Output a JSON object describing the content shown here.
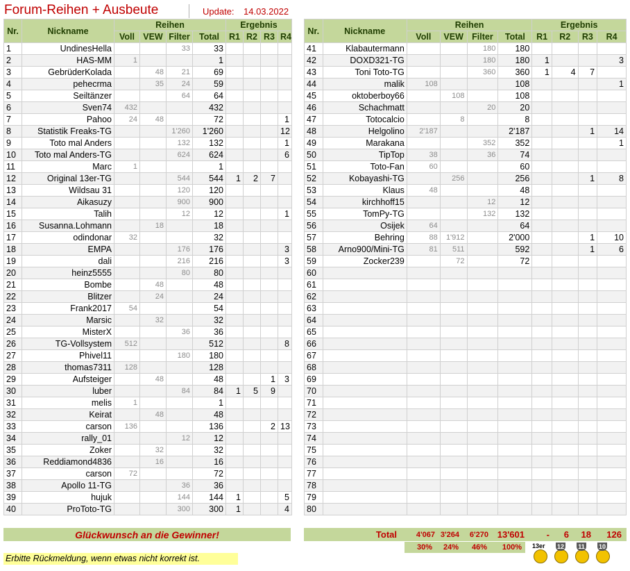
{
  "header": {
    "title": "Forum-Reihen + Ausbeute",
    "update_label": "Update:",
    "update_value": "14.03.2022"
  },
  "columns": {
    "nr": "Nr.",
    "nick": "Nickname",
    "group_reihen": "Reihen",
    "group_ergebnis": "Ergebnis",
    "voll": "Voll",
    "vew": "VEW",
    "filter": "Filter",
    "total": "Total",
    "r1": "R1",
    "r2": "R2",
    "r3": "R3",
    "r4": "R4"
  },
  "left_rows": [
    [
      "1",
      "UndinesHella",
      "",
      "",
      "33",
      "33",
      "",
      "",
      "",
      ""
    ],
    [
      "2",
      "HAS-MM",
      "1",
      "",
      "",
      "1",
      "",
      "",
      "",
      ""
    ],
    [
      "3",
      "GebrüderKolada",
      "",
      "48",
      "21",
      "69",
      "",
      "",
      "",
      ""
    ],
    [
      "4",
      "pehecrma",
      "",
      "35",
      "24",
      "59",
      "",
      "",
      "",
      ""
    ],
    [
      "5",
      "Seiltänzer",
      "",
      "",
      "64",
      "64",
      "",
      "",
      "",
      ""
    ],
    [
      "6",
      "Sven74",
      "432",
      "",
      "",
      "432",
      "",
      "",
      "",
      ""
    ],
    [
      "7",
      "Pahoo",
      "24",
      "48",
      "",
      "72",
      "",
      "",
      "",
      "1"
    ],
    [
      "8",
      "Statistik Freaks-TG",
      "",
      "",
      "1'260",
      "1'260",
      "",
      "",
      "",
      "12"
    ],
    [
      "9",
      "Toto mal Anders",
      "",
      "",
      "132",
      "132",
      "",
      "",
      "",
      "1"
    ],
    [
      "10",
      "Toto mal Anders-TG",
      "",
      "",
      "624",
      "624",
      "",
      "",
      "",
      "6"
    ],
    [
      "11",
      "Marc",
      "1",
      "",
      "",
      "1",
      "",
      "",
      "",
      ""
    ],
    [
      "12",
      "Original 13er-TG",
      "",
      "",
      "544",
      "544",
      "1",
      "2",
      "7",
      ""
    ],
    [
      "13",
      "Wildsau 31",
      "",
      "",
      "120",
      "120",
      "",
      "",
      "",
      ""
    ],
    [
      "14",
      "Aikasuzy",
      "",
      "",
      "900",
      "900",
      "",
      "",
      "",
      ""
    ],
    [
      "15",
      "Talih",
      "",
      "",
      "12",
      "12",
      "",
      "",
      "",
      "1"
    ],
    [
      "16",
      "Susanna.Lohmann",
      "",
      "18",
      "",
      "18",
      "",
      "",
      "",
      ""
    ],
    [
      "17",
      "odindonar",
      "32",
      "",
      "",
      "32",
      "",
      "",
      "",
      ""
    ],
    [
      "18",
      "EMPA",
      "",
      "",
      "176",
      "176",
      "",
      "",
      "",
      "3"
    ],
    [
      "19",
      "dali",
      "",
      "",
      "216",
      "216",
      "",
      "",
      "",
      "3"
    ],
    [
      "20",
      "heinz5555",
      "",
      "",
      "80",
      "80",
      "",
      "",
      "",
      ""
    ],
    [
      "21",
      "Bombe",
      "",
      "48",
      "",
      "48",
      "",
      "",
      "",
      ""
    ],
    [
      "22",
      "Blitzer",
      "",
      "24",
      "",
      "24",
      "",
      "",
      "",
      ""
    ],
    [
      "23",
      "Frank2017",
      "54",
      "",
      "",
      "54",
      "",
      "",
      "",
      ""
    ],
    [
      "24",
      "Marsic",
      "",
      "32",
      "",
      "32",
      "",
      "",
      "",
      ""
    ],
    [
      "25",
      "MisterX",
      "",
      "",
      "36",
      "36",
      "",
      "",
      "",
      ""
    ],
    [
      "26",
      "TG-Vollsystem",
      "512",
      "",
      "",
      "512",
      "",
      "",
      "",
      "8"
    ],
    [
      "27",
      "Phivel11",
      "",
      "",
      "180",
      "180",
      "",
      "",
      "",
      ""
    ],
    [
      "28",
      "thomas7311",
      "128",
      "",
      "",
      "128",
      "",
      "",
      "",
      ""
    ],
    [
      "29",
      "Aufsteiger",
      "",
      "48",
      "",
      "48",
      "",
      "",
      "1",
      "3"
    ],
    [
      "30",
      "luber",
      "",
      "",
      "84",
      "84",
      "1",
      "5",
      "9",
      ""
    ],
    [
      "31",
      "melis",
      "1",
      "",
      "",
      "1",
      "",
      "",
      "",
      ""
    ],
    [
      "32",
      "Keirat",
      "",
      "48",
      "",
      "48",
      "",
      "",
      "",
      ""
    ],
    [
      "33",
      "carson",
      "136",
      "",
      "",
      "136",
      "",
      "",
      "2",
      "13"
    ],
    [
      "34",
      "rally_01",
      "",
      "",
      "12",
      "12",
      "",
      "",
      "",
      ""
    ],
    [
      "35",
      "Zoker",
      "",
      "32",
      "",
      "32",
      "",
      "",
      "",
      ""
    ],
    [
      "36",
      "Reddiamond4836",
      "",
      "16",
      "",
      "16",
      "",
      "",
      "",
      ""
    ],
    [
      "37",
      "carson",
      "72",
      "",
      "",
      "72",
      "",
      "",
      "",
      ""
    ],
    [
      "38",
      "Apollo 11-TG",
      "",
      "",
      "36",
      "36",
      "",
      "",
      "",
      ""
    ],
    [
      "39",
      "hujuk",
      "",
      "",
      "144",
      "144",
      "1",
      "",
      "",
      "5"
    ],
    [
      "40",
      "ProToto-TG",
      "",
      "",
      "300",
      "300",
      "1",
      "",
      "",
      "4"
    ]
  ],
  "right_rows": [
    [
      "41",
      "Klabautermann",
      "",
      "",
      "180",
      "180",
      "",
      "",
      "",
      ""
    ],
    [
      "42",
      "DOXD321-TG",
      "",
      "",
      "180",
      "180",
      "1",
      "",
      "",
      "3"
    ],
    [
      "43",
      "Toni Toto-TG",
      "",
      "",
      "360",
      "360",
      "1",
      "4",
      "7",
      ""
    ],
    [
      "44",
      "malik",
      "108",
      "",
      "",
      "108",
      "",
      "",
      "",
      "1"
    ],
    [
      "45",
      "oktoberboy66",
      "",
      "108",
      "",
      "108",
      "",
      "",
      "",
      ""
    ],
    [
      "46",
      "Schachmatt",
      "",
      "",
      "20",
      "20",
      "",
      "",
      "",
      ""
    ],
    [
      "47",
      "Totocalcio",
      "",
      "8",
      "",
      "8",
      "",
      "",
      "",
      ""
    ],
    [
      "48",
      "Helgolino",
      "2'187",
      "",
      "",
      "2'187",
      "",
      "",
      "1",
      "14"
    ],
    [
      "49",
      "Marakana",
      "",
      "",
      "352",
      "352",
      "",
      "",
      "",
      "1"
    ],
    [
      "50",
      "TipTop",
      "38",
      "",
      "36",
      "74",
      "",
      "",
      "",
      ""
    ],
    [
      "51",
      "Toto-Fan",
      "60",
      "",
      "",
      "60",
      "",
      "",
      "",
      ""
    ],
    [
      "52",
      "Kobayashi-TG",
      "",
      "256",
      "",
      "256",
      "",
      "",
      "1",
      "8"
    ],
    [
      "53",
      "Klaus",
      "48",
      "",
      "",
      "48",
      "",
      "",
      "",
      ""
    ],
    [
      "54",
      "kirchhoff15",
      "",
      "",
      "12",
      "12",
      "",
      "",
      "",
      ""
    ],
    [
      "55",
      "TomPy-TG",
      "",
      "",
      "132",
      "132",
      "",
      "",
      "",
      ""
    ],
    [
      "56",
      "Osijek",
      "64",
      "",
      "",
      "64",
      "",
      "",
      "",
      ""
    ],
    [
      "57",
      "Behring",
      "88",
      "1'912",
      "",
      "2'000",
      "",
      "",
      "1",
      "10"
    ],
    [
      "58",
      "Arno900/Mini-TG",
      "81",
      "511",
      "",
      "592",
      "",
      "",
      "1",
      "6"
    ],
    [
      "59",
      "Zocker239",
      "",
      "72",
      "",
      "72",
      "",
      "",
      "",
      ""
    ],
    [
      "60",
      "",
      "",
      "",
      "",
      "",
      "",
      "",
      "",
      ""
    ],
    [
      "61",
      "",
      "",
      "",
      "",
      "",
      "",
      "",
      "",
      ""
    ],
    [
      "62",
      "",
      "",
      "",
      "",
      "",
      "",
      "",
      "",
      ""
    ],
    [
      "63",
      "",
      "",
      "",
      "",
      "",
      "",
      "",
      "",
      ""
    ],
    [
      "64",
      "",
      "",
      "",
      "",
      "",
      "",
      "",
      "",
      ""
    ],
    [
      "65",
      "",
      "",
      "",
      "",
      "",
      "",
      "",
      "",
      ""
    ],
    [
      "66",
      "",
      "",
      "",
      "",
      "",
      "",
      "",
      "",
      ""
    ],
    [
      "67",
      "",
      "",
      "",
      "",
      "",
      "",
      "",
      "",
      ""
    ],
    [
      "68",
      "",
      "",
      "",
      "",
      "",
      "",
      "",
      "",
      ""
    ],
    [
      "69",
      "",
      "",
      "",
      "",
      "",
      "",
      "",
      "",
      ""
    ],
    [
      "70",
      "",
      "",
      "",
      "",
      "",
      "",
      "",
      "",
      ""
    ],
    [
      "71",
      "",
      "",
      "",
      "",
      "",
      "",
      "",
      "",
      ""
    ],
    [
      "72",
      "",
      "",
      "",
      "",
      "",
      "",
      "",
      "",
      ""
    ],
    [
      "73",
      "",
      "",
      "",
      "",
      "",
      "",
      "",
      "",
      ""
    ],
    [
      "74",
      "",
      "",
      "",
      "",
      "",
      "",
      "",
      "",
      ""
    ],
    [
      "75",
      "",
      "",
      "",
      "",
      "",
      "",
      "",
      "",
      ""
    ],
    [
      "76",
      "",
      "",
      "",
      "",
      "",
      "",
      "",
      "",
      ""
    ],
    [
      "77",
      "",
      "",
      "",
      "",
      "",
      "",
      "",
      "",
      ""
    ],
    [
      "78",
      "",
      "",
      "",
      "",
      "",
      "",
      "",
      "",
      ""
    ],
    [
      "79",
      "",
      "",
      "",
      "",
      "",
      "",
      "",
      "",
      ""
    ],
    [
      "80",
      "",
      "",
      "",
      "",
      "",
      "",
      "",
      "",
      ""
    ]
  ],
  "footer": {
    "congrats": "Glückwunsch an die Gewinner!",
    "total_label": "Total",
    "total_voll": "4'067",
    "total_vew": "3'264",
    "total_filter": "6'270",
    "total_total": "13'601",
    "total_r1": "-",
    "total_r2": "6",
    "total_r3": "18",
    "total_r4": "126",
    "pct_voll": "30%",
    "pct_vew": "24%",
    "pct_filter": "46%",
    "pct_total": "100%",
    "note": "Erbitte Rückmeldung, wenn etwas nicht korrekt ist.",
    "trophies": [
      {
        "icon": "13er-trophy-icon",
        "label": "13er"
      },
      {
        "icon": "12-trophy-icon",
        "label": "12"
      },
      {
        "icon": "11-trophy-icon",
        "label": "11"
      },
      {
        "icon": "10-trophy-icon",
        "label": "10"
      }
    ]
  }
}
